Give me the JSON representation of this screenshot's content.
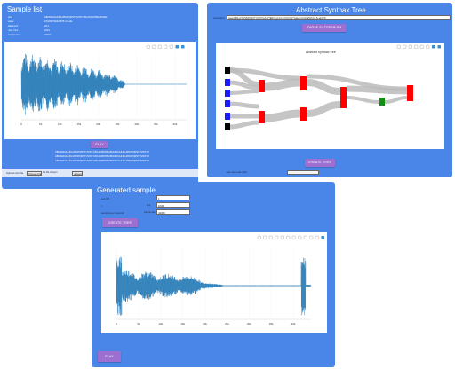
{
  "sample_list": {
    "title": "Sample list",
    "rows": [
      {
        "key": "text",
        "value": "ABCDEFGHIJKLMNOPQRSTUVWXYZ0123456789ABCDEF"
      },
      {
        "key": "value",
        "value": "0.51000732421875 0.1 abc"
      },
      {
        "key": "alignment",
        "value": "26.1"
      },
      {
        "key": "num. bins",
        "value": "1024"
      },
      {
        "key": "samplerate",
        "value": "44100"
      }
    ],
    "play_label": "PLAY",
    "text_lines": [
      "ABCDEFGHIJKLMNOPQRSTUVWXYZ0123456789ABCDEFGHIJKLMNOPQRSTUVWXYZ",
      "ABCDEFGHIJKLMNOPQRSTUVWXYZ0123456789ABCDEFGHIJKLMNOPQRSTUVWXYZ",
      "ABCDEFGHIJKLMNOPQRSTUVWXYZ0123456789ABCDEFGHIJKLMNOPQRSTUVWXYZ"
    ],
    "upload_label": "Upload own file",
    "choose_file": "Choose File",
    "no_file": "No file chosen",
    "upload_button": "upload"
  },
  "syntax_tree": {
    "title": "Abstract Synthax Tree",
    "expression_label": "expression:",
    "expression_value": "(saw(x,80)+0.5*((SIN(SIN(X*1.5))*0.5+0.5)*(ENV(x,0.2,0.3,0.5,0.2))))*noise(x,0.01)*ENV(x)/7.5+sin(x*2)",
    "parse_button": "PARSE EXPRESSION",
    "chart_title": "Abstract synthax tree",
    "create_button": "CREATE TREE",
    "use_tree_label": "Use own node track",
    "use_tree_value": ""
  },
  "generated": {
    "title": "Generated sample",
    "fields": [
      {
        "label": "expr(x)",
        "hint": "",
        "value": "1"
      },
      {
        "label": "t",
        "hint": "freq",
        "value": "1000"
      },
      {
        "label": "sample per second",
        "hint": "sample rate",
        "value": "44000"
      }
    ],
    "create_button": "CREATE TREE",
    "play_label": "PLAY"
  },
  "chart_data": [
    {
      "type": "line",
      "title": "",
      "xlabel": "",
      "ylabel": "",
      "x_ticks": [
        "0",
        "5k",
        "10k",
        "15k",
        "20k",
        "25k",
        "30k",
        "35k",
        "40k"
      ],
      "x_range": [
        0,
        43000
      ],
      "series": [
        {
          "values": []
        }
      ],
      "description_of_shape": "dense waveform, large amplitude at start decaying to flat near 27k"
    },
    {
      "type": "line",
      "title": "",
      "xlabel": "",
      "ylabel": "",
      "x_ticks": [
        "0",
        "5k",
        "10k",
        "15k",
        "20k",
        "25k",
        "30k",
        "35k",
        "40k"
      ],
      "x_range": [
        0,
        44000
      ],
      "series": [
        {
          "values": []
        }
      ]
    }
  ],
  "colors": {
    "panel": "#4a86e8",
    "button": "#9c6fd1",
    "wave": "#1f77b4",
    "node_red": "#ff0000",
    "node_blue": "#1a1aff",
    "node_black": "#000000",
    "node_green": "#109010",
    "link": "#bbbbbb"
  }
}
